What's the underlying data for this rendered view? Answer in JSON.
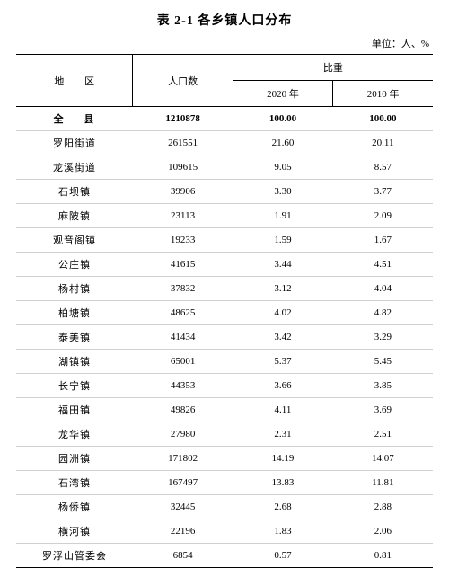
{
  "title": "表 2-1 各乡镇人口分布",
  "unit": "单位：人、%",
  "header": {
    "region": "地 区",
    "population": "人口数",
    "proportion": "比重",
    "year2020": "2020 年",
    "year2010": "2010 年"
  },
  "total_row": {
    "region": "全 县",
    "population": "1210878",
    "p2020": "100.00",
    "p2010": "100.00"
  },
  "rows": [
    {
      "region": "罗阳街道",
      "population": "261551",
      "p2020": "21.60",
      "p2010": "20.11"
    },
    {
      "region": "龙溪街道",
      "population": "109615",
      "p2020": "9.05",
      "p2010": "8.57"
    },
    {
      "region": "石坝镇",
      "population": "39906",
      "p2020": "3.30",
      "p2010": "3.77"
    },
    {
      "region": "麻陂镇",
      "population": "23113",
      "p2020": "1.91",
      "p2010": "2.09"
    },
    {
      "region": "观音阁镇",
      "population": "19233",
      "p2020": "1.59",
      "p2010": "1.67"
    },
    {
      "region": "公庄镇",
      "population": "41615",
      "p2020": "3.44",
      "p2010": "4.51"
    },
    {
      "region": "杨村镇",
      "population": "37832",
      "p2020": "3.12",
      "p2010": "4.04"
    },
    {
      "region": "柏塘镇",
      "population": "48625",
      "p2020": "4.02",
      "p2010": "4.82"
    },
    {
      "region": "泰美镇",
      "population": "41434",
      "p2020": "3.42",
      "p2010": "3.29"
    },
    {
      "region": "湖镇镇",
      "population": "65001",
      "p2020": "5.37",
      "p2010": "5.45"
    },
    {
      "region": "长宁镇",
      "population": "44353",
      "p2020": "3.66",
      "p2010": "3.85"
    },
    {
      "region": "福田镇",
      "population": "49826",
      "p2020": "4.11",
      "p2010": "3.69"
    },
    {
      "region": "龙华镇",
      "population": "27980",
      "p2020": "2.31",
      "p2010": "2.51"
    },
    {
      "region": "园洲镇",
      "population": "171802",
      "p2020": "14.19",
      "p2010": "14.07"
    },
    {
      "region": "石湾镇",
      "population": "167497",
      "p2020": "13.83",
      "p2010": "11.81"
    },
    {
      "region": "杨侨镇",
      "population": "32445",
      "p2020": "2.68",
      "p2010": "2.88"
    },
    {
      "region": "横河镇",
      "population": "22196",
      "p2020": "1.83",
      "p2010": "2.06"
    },
    {
      "region": "罗浮山管委会",
      "population": "6854",
      "p2020": "0.57",
      "p2010": "0.81"
    }
  ]
}
